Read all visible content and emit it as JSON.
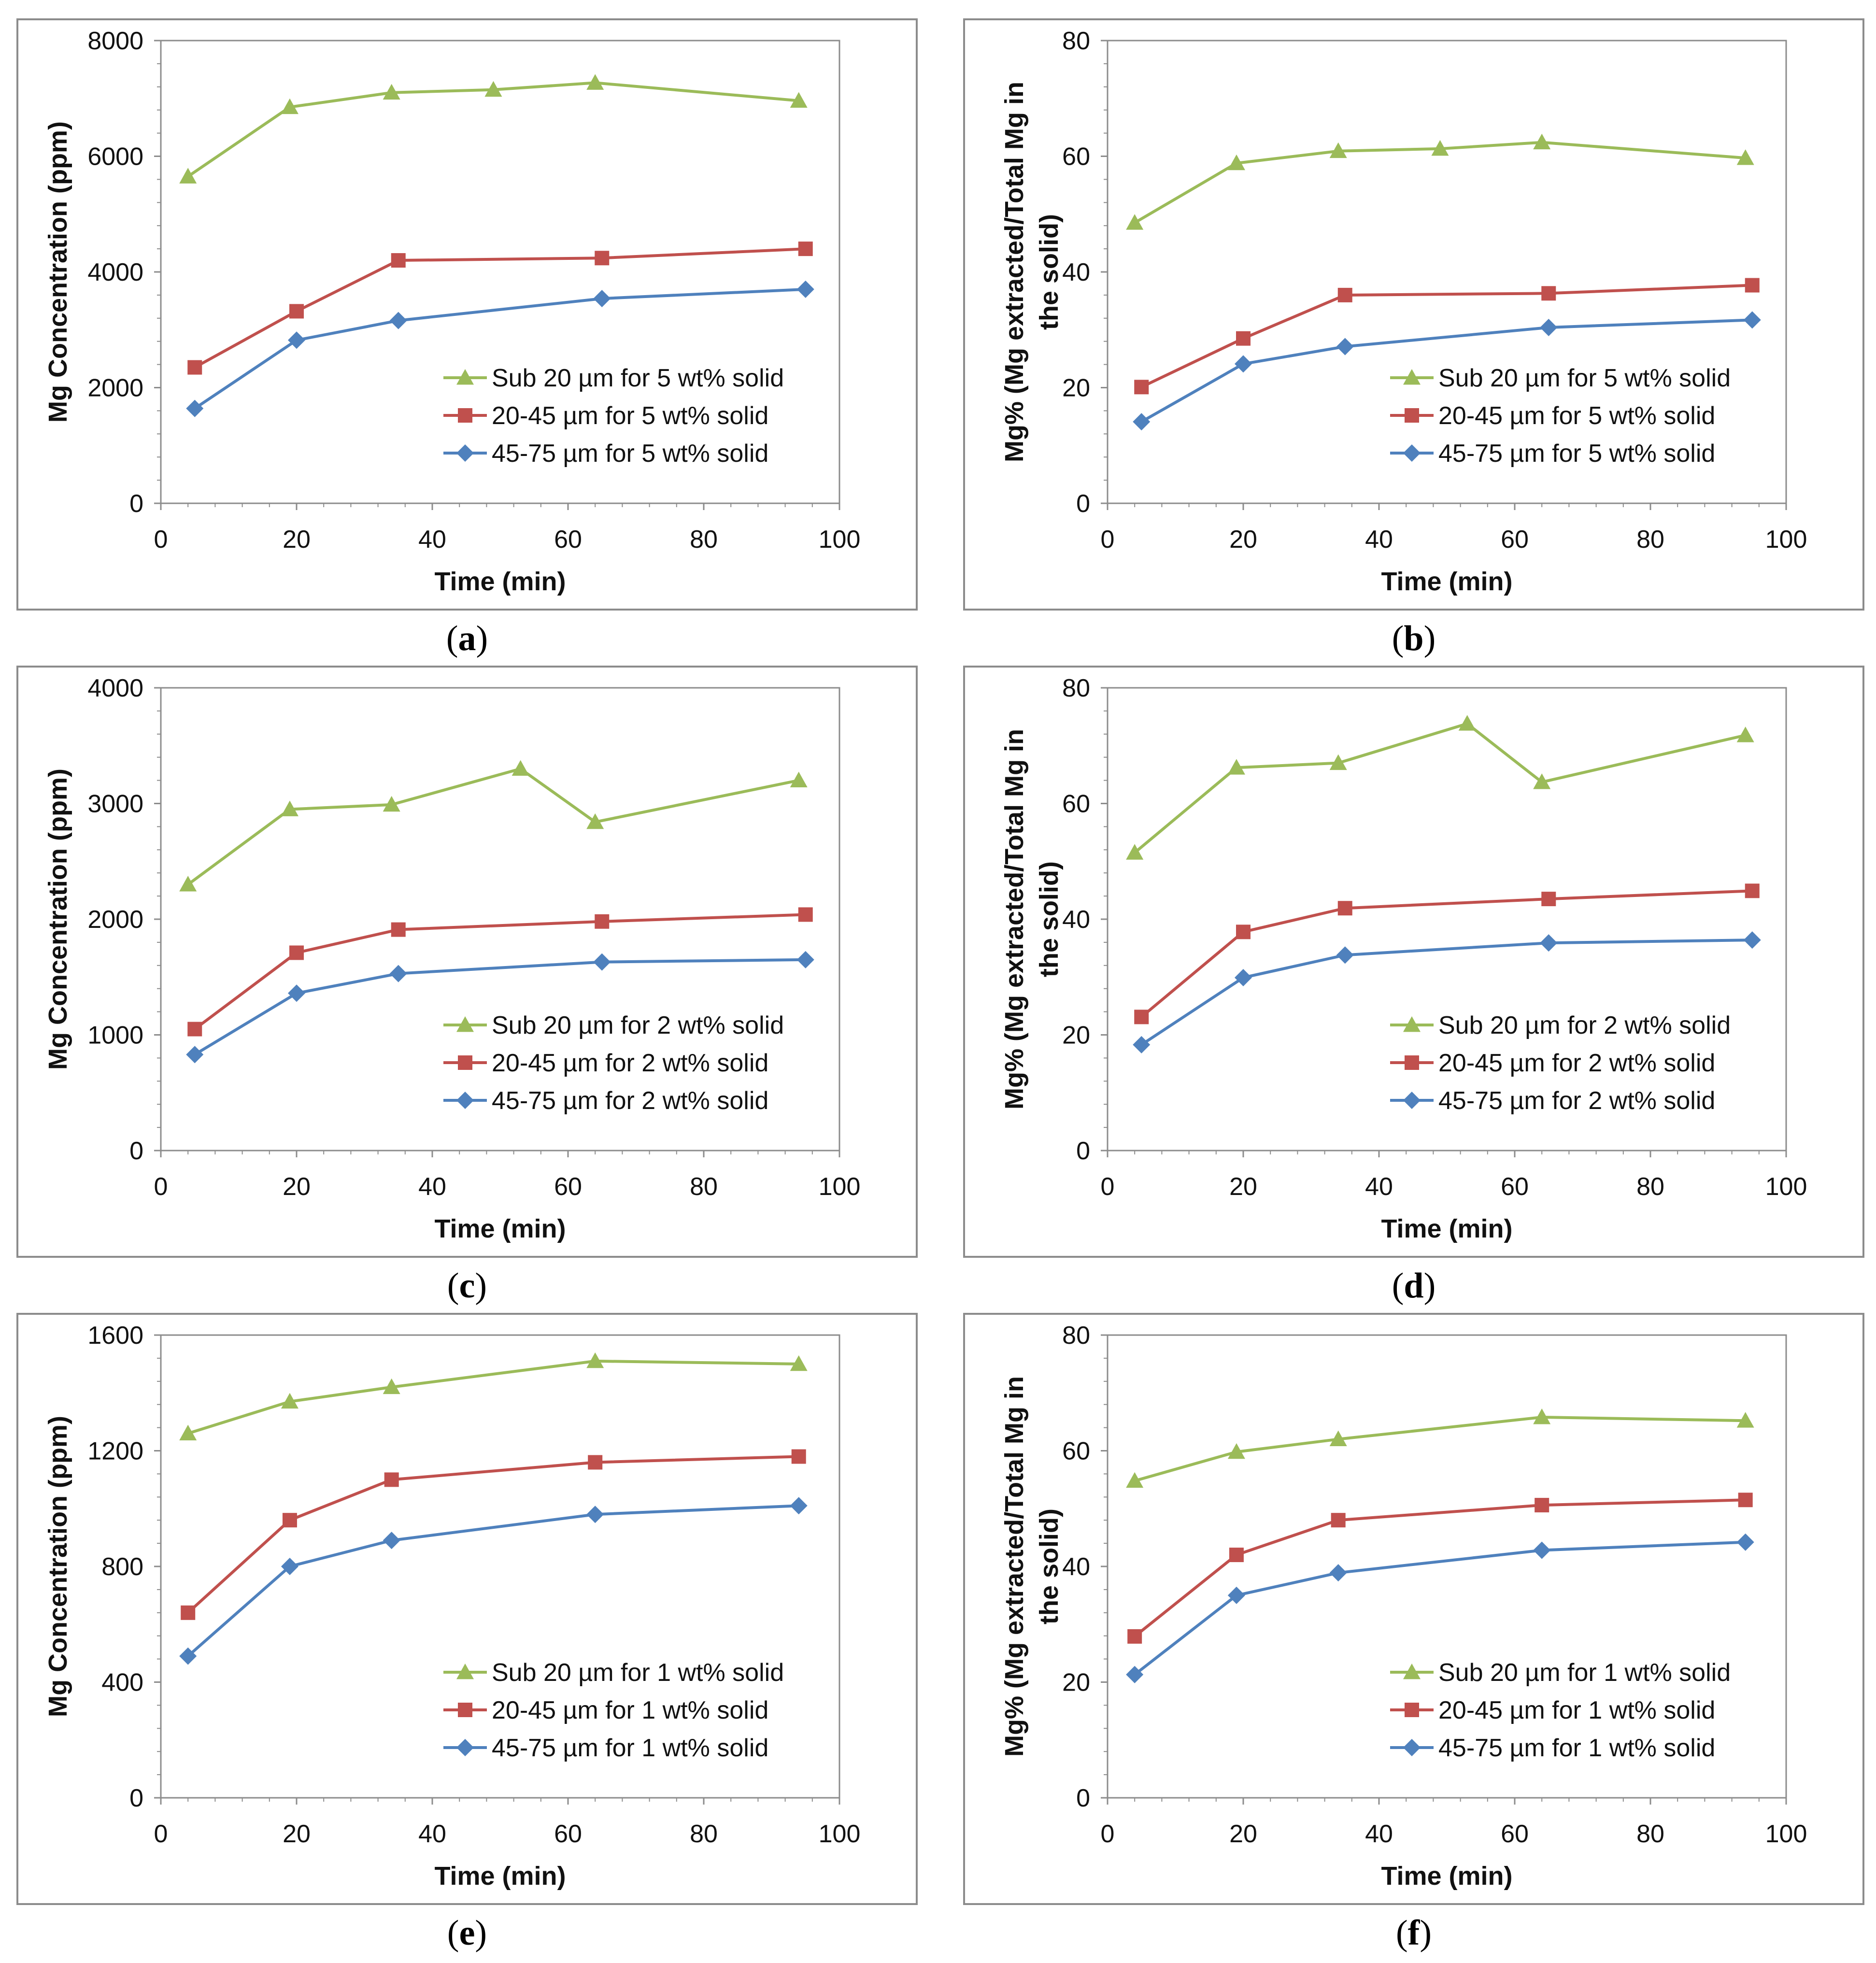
{
  "chart_data": [
    {
      "id": "a",
      "caption": "a",
      "type": "line",
      "title": "",
      "xlabel": "Time (min)",
      "ylabel": "Mg Concentration (ppm)",
      "xlim": [
        0,
        100
      ],
      "ylim": [
        0,
        8000
      ],
      "xticks": [
        "0",
        "20",
        "40",
        "60",
        "80",
        "100"
      ],
      "yticks": [
        "0",
        "2000",
        "4000",
        "6000",
        "8000"
      ],
      "grid": false,
      "legend_position": "bottom-right",
      "series": [
        {
          "name": "Sub 20 µm for 5 wt% solid",
          "color": "#9bbb59",
          "marker": "triangle",
          "x": [
            4,
            19,
            34,
            49,
            64,
            94
          ],
          "y": [
            5650,
            6850,
            7100,
            7150,
            7270,
            6960
          ]
        },
        {
          "name": "20-45 µm for 5 wt% solid",
          "color": "#c0504d",
          "marker": "square",
          "x": [
            5,
            20,
            35,
            65,
            95
          ],
          "y": [
            2350,
            3320,
            4200,
            4240,
            4400
          ]
        },
        {
          "name": "45-75 µm for 5 wt% solid",
          "color": "#4f81bd",
          "marker": "diamond",
          "x": [
            5,
            20,
            35,
            65,
            95
          ],
          "y": [
            1640,
            2820,
            3160,
            3540,
            3700
          ]
        }
      ]
    },
    {
      "id": "b",
      "caption": "b",
      "type": "line",
      "title": "",
      "xlabel": "Time (min)",
      "ylabel": "Mg% (Mg extracted/Total Mg in the solid)",
      "ylabel_lines": [
        "Mg% (Mg extracted/Total Mg in",
        "the solid)"
      ],
      "xlim": [
        0,
        100
      ],
      "ylim": [
        0,
        80
      ],
      "xticks": [
        "0",
        "20",
        "40",
        "60",
        "80",
        "100"
      ],
      "yticks": [
        "0",
        "20",
        "40",
        "60",
        "80"
      ],
      "grid": false,
      "legend_position": "bottom-right",
      "series": [
        {
          "name": "Sub 20 µm for 5 wt% solid",
          "color": "#9bbb59",
          "marker": "triangle",
          "x": [
            4,
            19,
            34,
            49,
            64,
            94
          ],
          "y": [
            48.5,
            58.8,
            60.9,
            61.3,
            62.4,
            59.7
          ]
        },
        {
          "name": "20-45 µm for 5 wt% solid",
          "color": "#c0504d",
          "marker": "square",
          "x": [
            5,
            20,
            35,
            65,
            95
          ],
          "y": [
            20.1,
            28.5,
            36,
            36.3,
            37.7
          ]
        },
        {
          "name": "45-75 µm for 5 wt% solid",
          "color": "#4f81bd",
          "marker": "diamond",
          "x": [
            5,
            20,
            35,
            65,
            95
          ],
          "y": [
            14.1,
            24.1,
            27.1,
            30.4,
            31.7
          ]
        }
      ]
    },
    {
      "id": "c",
      "caption": "c",
      "type": "line",
      "title": "",
      "xlabel": "Time (min)",
      "ylabel": "Mg Concentration (ppm)",
      "xlim": [
        0,
        100
      ],
      "ylim": [
        0,
        4000
      ],
      "xticks": [
        "0",
        "20",
        "40",
        "60",
        "80",
        "100"
      ],
      "yticks": [
        "0",
        "1000",
        "2000",
        "3000",
        "4000"
      ],
      "grid": false,
      "legend_position": "bottom-right",
      "series": [
        {
          "name": "Sub 20 µm for 2 wt% solid",
          "color": "#9bbb59",
          "marker": "triangle",
          "x": [
            4,
            19,
            34,
            53,
            64,
            94
          ],
          "y": [
            2300,
            2950,
            2990,
            3300,
            2840,
            3200
          ]
        },
        {
          "name": "20-45 µm for 2 wt% solid",
          "color": "#c0504d",
          "marker": "square",
          "x": [
            5,
            20,
            35,
            65,
            95
          ],
          "y": [
            1050,
            1710,
            1910,
            1980,
            2040
          ]
        },
        {
          "name": "45-75 µm for 2 wt% solid",
          "color": "#4f81bd",
          "marker": "diamond",
          "x": [
            5,
            20,
            35,
            65,
            95
          ],
          "y": [
            830,
            1360,
            1530,
            1630,
            1650
          ]
        }
      ]
    },
    {
      "id": "d",
      "caption": "d",
      "type": "line",
      "title": "",
      "xlabel": "Time (min)",
      "ylabel": "Mg% (Mg extracted/Total Mg in the solid)",
      "ylabel_lines": [
        "Mg% (Mg extracted/Total Mg in",
        "the solid)"
      ],
      "xlim": [
        0,
        100
      ],
      "ylim": [
        0,
        80
      ],
      "xticks": [
        "0",
        "20",
        "40",
        "60",
        "80",
        "100"
      ],
      "yticks": [
        "0",
        "20",
        "40",
        "60",
        "80"
      ],
      "grid": false,
      "legend_position": "bottom-right",
      "series": [
        {
          "name": "Sub 20 µm for 2 wt% solid",
          "color": "#9bbb59",
          "marker": "triangle",
          "x": [
            4,
            19,
            34,
            53,
            64,
            94
          ],
          "y": [
            51.5,
            66.2,
            67,
            73.8,
            63.7,
            71.8
          ]
        },
        {
          "name": "20-45 µm for 2 wt% solid",
          "color": "#c0504d",
          "marker": "square",
          "x": [
            5,
            20,
            35,
            65,
            95
          ],
          "y": [
            23.1,
            37.8,
            41.9,
            43.5,
            44.9
          ]
        },
        {
          "name": "45-75 µm for 2 wt% solid",
          "color": "#4f81bd",
          "marker": "diamond",
          "x": [
            5,
            20,
            35,
            65,
            95
          ],
          "y": [
            18.3,
            29.9,
            33.8,
            35.9,
            36.4
          ]
        }
      ]
    },
    {
      "id": "e",
      "caption": "e",
      "type": "line",
      "title": "",
      "xlabel": "Time (min)",
      "ylabel": "Mg Concentration (ppm)",
      "xlim": [
        0,
        100
      ],
      "ylim": [
        0,
        1600
      ],
      "xticks": [
        "0",
        "20",
        "40",
        "60",
        "80",
        "100"
      ],
      "yticks": [
        "0",
        "400",
        "800",
        "1200",
        "1600"
      ],
      "grid": false,
      "legend_position": "bottom-right",
      "series": [
        {
          "name": "Sub 20 µm for 1 wt% solid",
          "color": "#9bbb59",
          "marker": "triangle",
          "x": [
            4,
            19,
            34,
            64,
            94
          ],
          "y": [
            1260,
            1370,
            1420,
            1510,
            1500
          ]
        },
        {
          "name": "20-45 µm for 1 wt% solid",
          "color": "#c0504d",
          "marker": "square",
          "x": [
            4,
            19,
            34,
            64,
            94
          ],
          "y": [
            640,
            960,
            1100,
            1160,
            1180
          ]
        },
        {
          "name": "45-75 µm for 1 wt% solid",
          "color": "#4f81bd",
          "marker": "diamond",
          "x": [
            4,
            19,
            34,
            64,
            94
          ],
          "y": [
            490,
            800,
            890,
            980,
            1010
          ]
        }
      ]
    },
    {
      "id": "f",
      "caption": "f",
      "type": "line",
      "title": "",
      "xlabel": "Time (min)",
      "ylabel": "Mg% (Mg extracted/Total Mg in the solid)",
      "ylabel_lines": [
        "Mg% (Mg extracted/Total Mg in",
        "the solid)"
      ],
      "xlim": [
        0,
        100
      ],
      "ylim": [
        0,
        80
      ],
      "xticks": [
        "0",
        "20",
        "40",
        "60",
        "80",
        "100"
      ],
      "yticks": [
        "0",
        "20",
        "40",
        "60",
        "80"
      ],
      "grid": false,
      "legend_position": "bottom-right",
      "series": [
        {
          "name": "Sub 20 µm for 1 wt% solid",
          "color": "#9bbb59",
          "marker": "triangle",
          "x": [
            4,
            19,
            34,
            64,
            94
          ],
          "y": [
            54.8,
            59.8,
            62,
            65.8,
            65.2
          ]
        },
        {
          "name": "20-45 µm for 1 wt% solid",
          "color": "#c0504d",
          "marker": "square",
          "x": [
            4,
            19,
            34,
            64,
            94
          ],
          "y": [
            27.9,
            42,
            48,
            50.6,
            51.5
          ]
        },
        {
          "name": "45-75 µm for 1 wt% solid",
          "color": "#4f81bd",
          "marker": "diamond",
          "x": [
            4,
            19,
            34,
            64,
            94
          ],
          "y": [
            21.3,
            35,
            38.9,
            42.8,
            44.2
          ]
        }
      ]
    }
  ]
}
